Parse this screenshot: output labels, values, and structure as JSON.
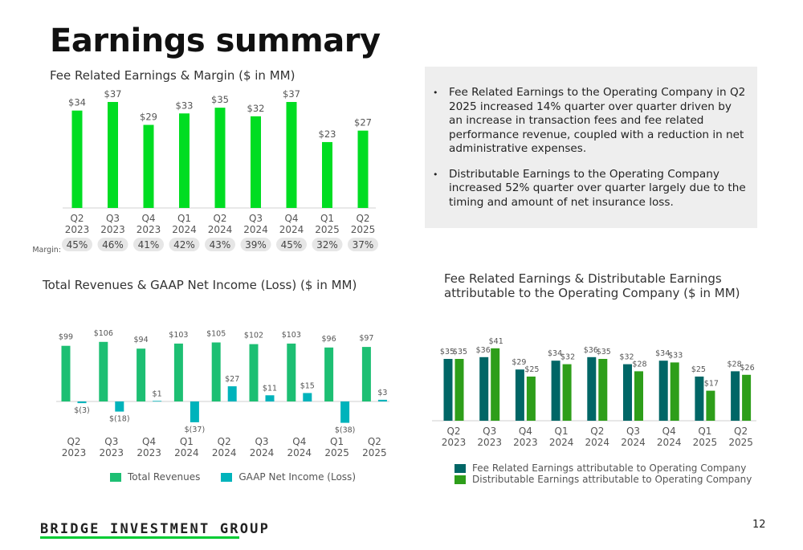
{
  "title": "Earnings summary",
  "commentary": {
    "bullets": [
      "Fee Related Earnings to the Operating Company in Q2 2025 increased 14% quarter over quarter driven by an increase in transaction fees and fee related performance revenue, coupled with a reduction in net administrative expenses.",
      "Distributable Earnings to the Operating Company increased 52% quarter over quarter largely due to the timing and amount of net insurance loss."
    ]
  },
  "colors": {
    "bright_green": "#00dd22",
    "revenue_green": "#1dbf73",
    "teal": "#00b3bb",
    "dark_teal": "#006666",
    "medium_green": "#2e9e1a",
    "margin_pill": "#e6e6e6",
    "footer_accent": "#00cc33"
  },
  "footer": {
    "logo": "BRIDGE INVESTMENT GROUP",
    "page_number": "12"
  },
  "chart_data": [
    {
      "id": "fre",
      "type": "bar",
      "title": "Fee Related Earnings & Margin ($ in MM)",
      "categories": [
        [
          "Q2",
          "2023"
        ],
        [
          "Q3",
          "2023"
        ],
        [
          "Q4",
          "2023"
        ],
        [
          "Q1",
          "2024"
        ],
        [
          "Q2",
          "2024"
        ],
        [
          "Q3",
          "2024"
        ],
        [
          "Q4",
          "2024"
        ],
        [
          "Q1",
          "2025"
        ],
        [
          "Q2",
          "2025"
        ]
      ],
      "values": [
        34,
        37,
        29,
        33,
        35,
        32,
        37,
        23,
        27
      ],
      "labels": [
        "$34",
        "$37",
        "$29",
        "$33",
        "$35",
        "$32",
        "$37",
        "$23",
        "$27"
      ],
      "margin_label": "Margin:",
      "margins": [
        "45%",
        "46%",
        "41%",
        "42%",
        "43%",
        "39%",
        "45%",
        "32%",
        "37%"
      ],
      "ylim": [
        0,
        37
      ]
    },
    {
      "id": "revenue",
      "type": "bar",
      "title": "Total Revenues & GAAP Net Income (Loss) ($ in MM)",
      "categories": [
        [
          "Q2",
          "2023"
        ],
        [
          "Q3",
          "2023"
        ],
        [
          "Q4",
          "2023"
        ],
        [
          "Q1",
          "2024"
        ],
        [
          "Q2",
          "2024"
        ],
        [
          "Q3",
          "2024"
        ],
        [
          "Q4",
          "2024"
        ],
        [
          "Q1",
          "2025"
        ],
        [
          "Q2",
          "2025"
        ]
      ],
      "series": [
        {
          "name": "Total Revenues",
          "values": [
            99,
            106,
            94,
            103,
            105,
            102,
            103,
            96,
            97
          ],
          "labels": [
            "$99",
            "$106",
            "$94",
            "$103",
            "$105",
            "$102",
            "$103",
            "$96",
            "$97"
          ]
        },
        {
          "name": "GAAP Net Income (Loss)",
          "values": [
            -3,
            -18,
            1,
            -37,
            27,
            11,
            15,
            -38,
            3
          ],
          "labels": [
            "$(3)",
            "$(18)",
            "$1",
            "$(37)",
            "$27",
            "$11",
            "$15",
            "$(38)",
            "$3"
          ]
        }
      ]
    },
    {
      "id": "de",
      "type": "bar",
      "title": [
        "Fee Related Earnings & Distributable Earnings",
        "attributable to the Operating Company ($ in MM)"
      ],
      "categories": [
        [
          "Q2",
          "2023"
        ],
        [
          "Q3",
          "2023"
        ],
        [
          "Q4",
          "2023"
        ],
        [
          "Q1",
          "2024"
        ],
        [
          "Q2",
          "2024"
        ],
        [
          "Q3",
          "2024"
        ],
        [
          "Q4",
          "2024"
        ],
        [
          "Q1",
          "2025"
        ],
        [
          "Q2",
          "2025"
        ]
      ],
      "series": [
        {
          "name": "Fee Related Earnings attributable to Operating Company",
          "values": [
            35,
            36,
            29,
            34,
            36,
            32,
            34,
            25,
            28
          ],
          "labels": [
            "$35",
            "$36",
            "$29",
            "$34",
            "$36",
            "$32",
            "$34",
            "$25",
            "$28"
          ]
        },
        {
          "name": "Distributable Earnings attributable to Operating Company",
          "values": [
            35,
            41,
            25,
            32,
            35,
            28,
            33,
            17,
            26
          ],
          "labels": [
            "$35",
            "$41",
            "$25",
            "$32",
            "$35",
            "$28",
            "$33",
            "$17",
            "$26"
          ]
        }
      ]
    }
  ]
}
